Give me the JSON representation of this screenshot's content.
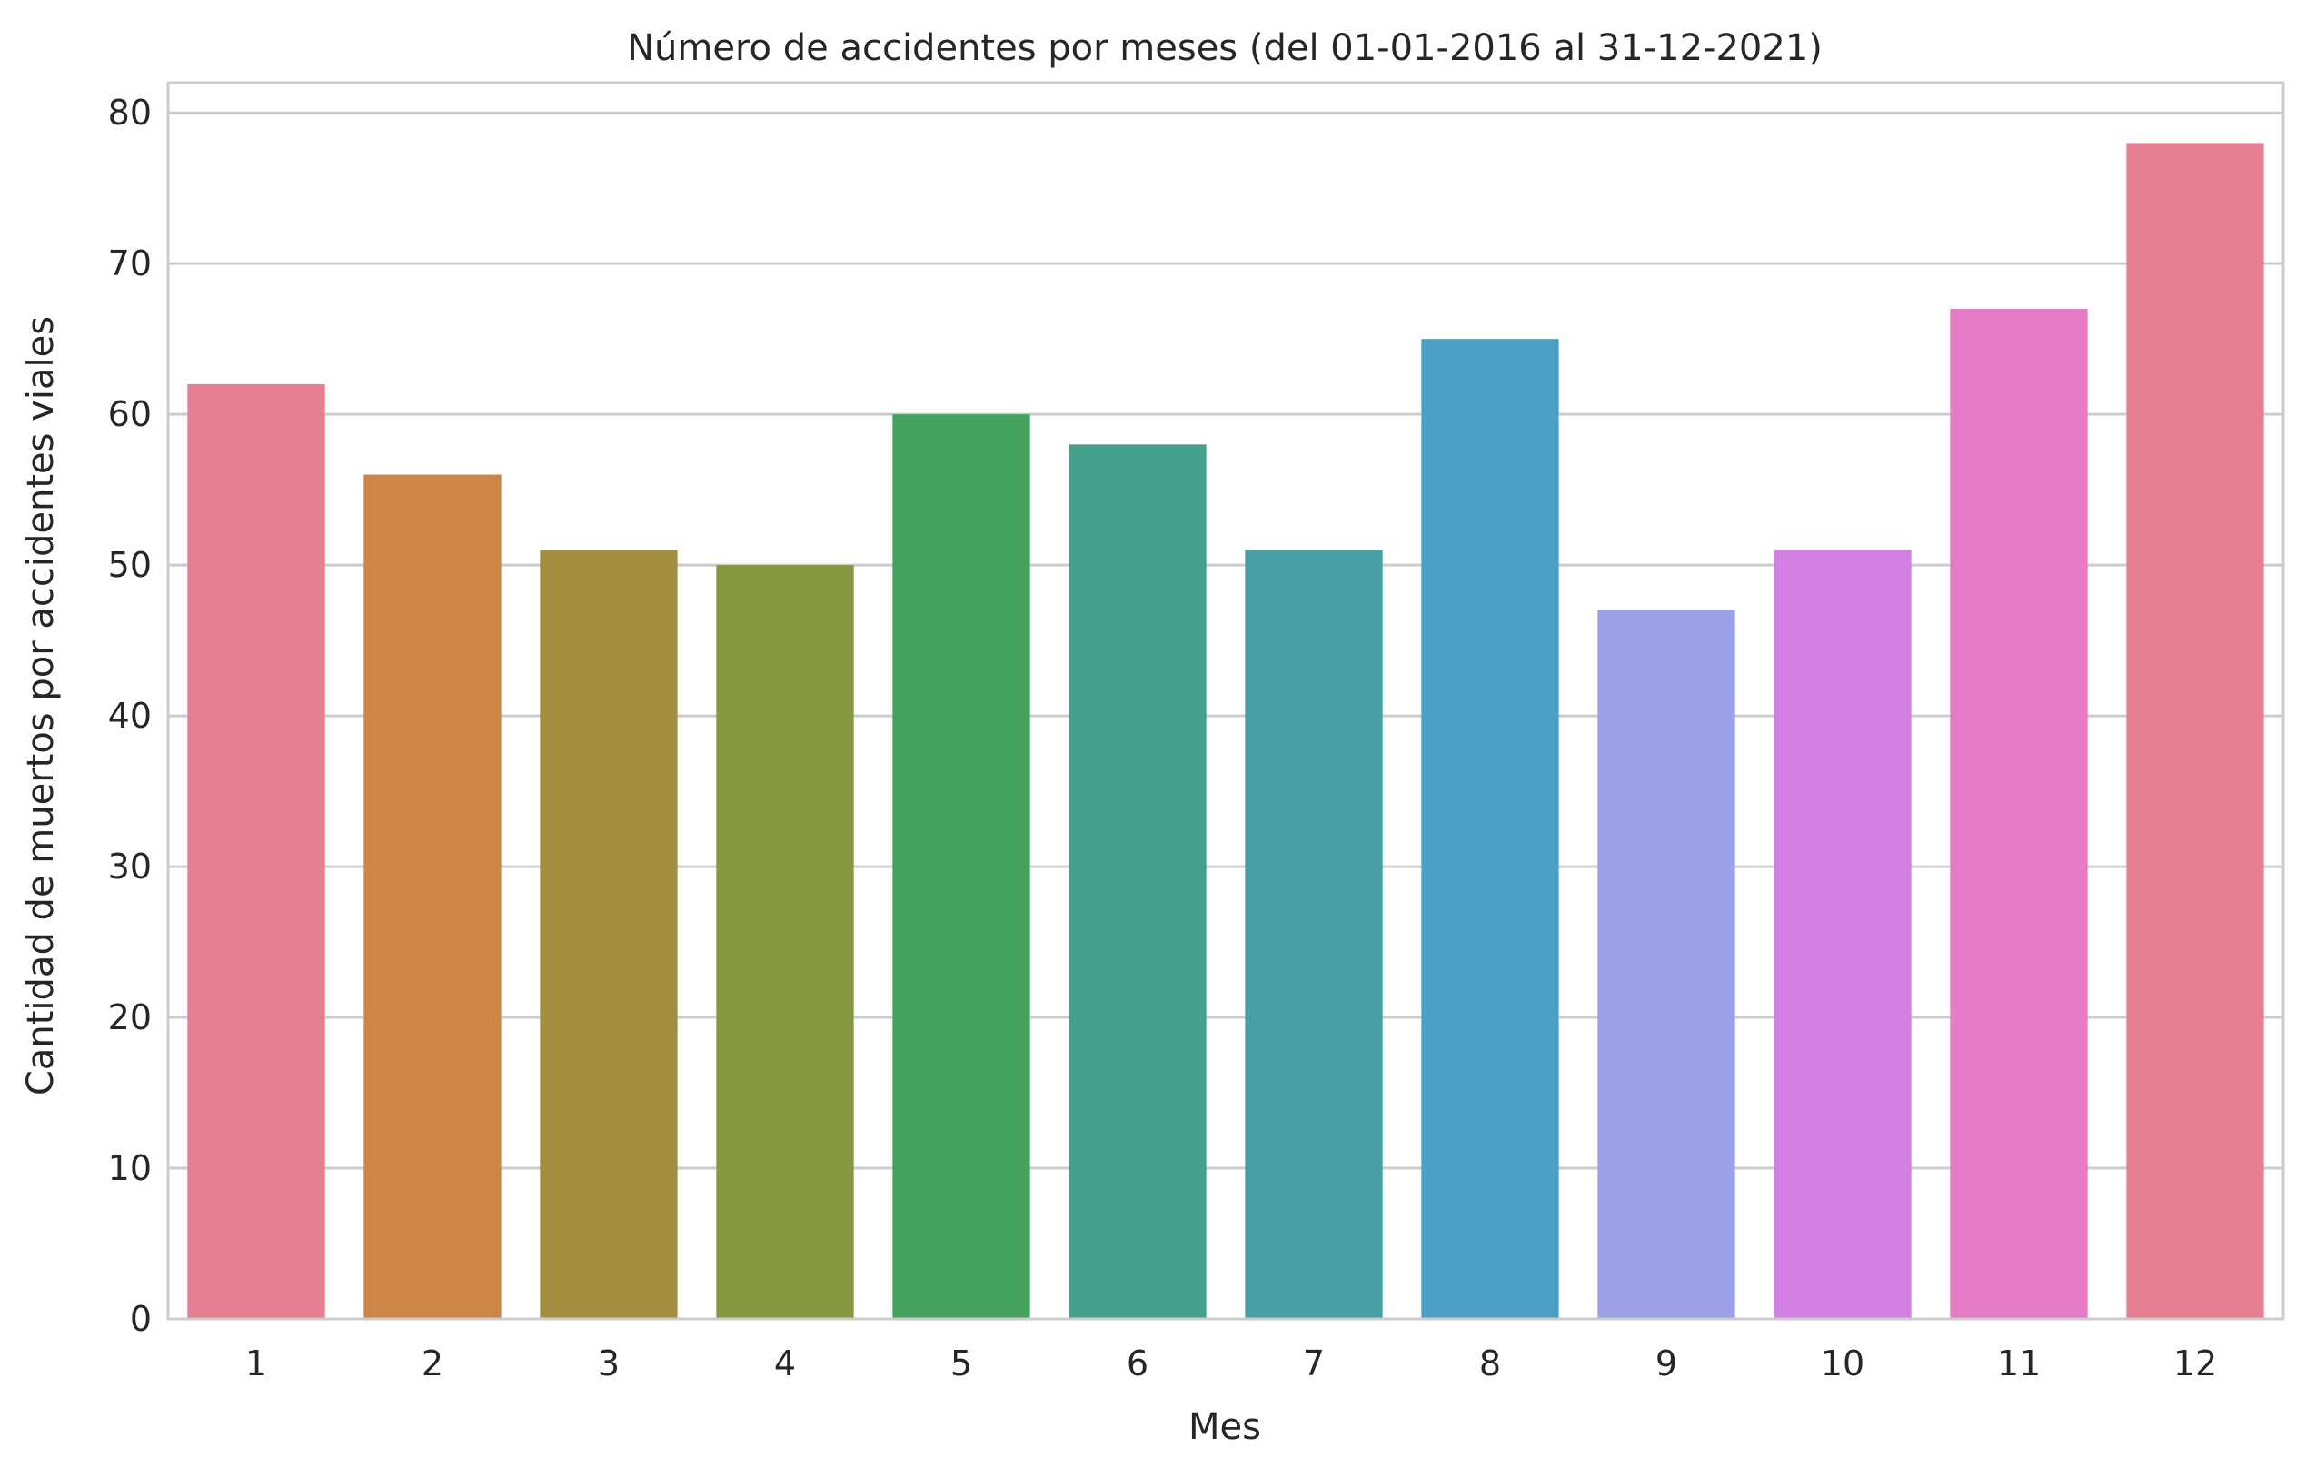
{
  "chart_data": {
    "type": "bar",
    "title": "Número de accidentes por meses (del 01-01-2016 al 31-12-2021)",
    "xlabel": "Mes",
    "ylabel": "Cantidad de muertos por accidentes viales",
    "categories": [
      "1",
      "2",
      "3",
      "4",
      "5",
      "6",
      "7",
      "8",
      "9",
      "10",
      "11",
      "12"
    ],
    "values": [
      62,
      56,
      51,
      50,
      60,
      58,
      51,
      65,
      47,
      51,
      67,
      78
    ],
    "colors": [
      "#e67f92",
      "#cd8548",
      "#a48f40",
      "#85983f",
      "#45a35f",
      "#45a08b",
      "#489fa6",
      "#4ea1c6",
      "#9ca0e6",
      "#d281e2",
      "#e57bc4",
      "#e67f92"
    ],
    "ylim": [
      0,
      82
    ],
    "yticks": [
      0,
      10,
      20,
      30,
      40,
      50,
      60,
      70,
      80
    ],
    "grid": true,
    "grid_color": "#cccccc",
    "background": "#ffffff"
  }
}
